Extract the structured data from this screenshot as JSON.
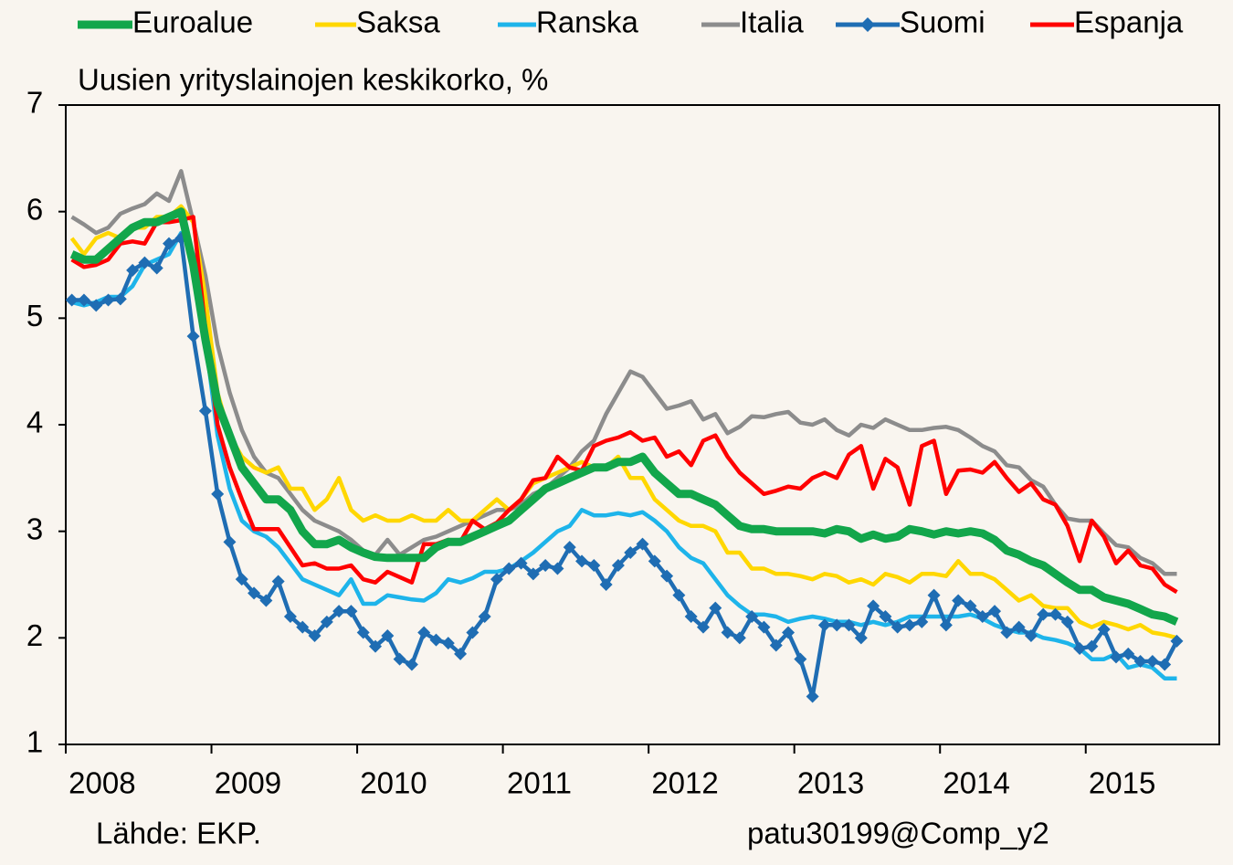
{
  "chart_data": {
    "type": "line",
    "subtitle": "Uusien yrityslainojen keskikorko, %",
    "source": "Lähde: EKP.",
    "credit": "patu30199@Comp_y2",
    "legend": "top",
    "categories": [
      "2008",
      null,
      null,
      null,
      null,
      null,
      null,
      null,
      null,
      null,
      null,
      null,
      "2009",
      null,
      null,
      null,
      null,
      null,
      null,
      null,
      null,
      null,
      null,
      null,
      "2010",
      null,
      null,
      null,
      null,
      null,
      null,
      null,
      null,
      null,
      null,
      null,
      "2011",
      null,
      null,
      null,
      null,
      null,
      null,
      null,
      null,
      null,
      null,
      null,
      "2012",
      null,
      null,
      null,
      null,
      null,
      null,
      null,
      null,
      null,
      null,
      null,
      "2013",
      null,
      null,
      null,
      null,
      null,
      null,
      null,
      null,
      null,
      null,
      null,
      "2014",
      null,
      null,
      null,
      null,
      null,
      null,
      null,
      null,
      null,
      null,
      null,
      "2015",
      null,
      null,
      null,
      null,
      null,
      null,
      null,
      null,
      null,
      null
    ],
    "ylim": [
      1,
      7
    ],
    "yticks": [
      1,
      2,
      3,
      4,
      5,
      6,
      7
    ],
    "grid": false,
    "series": [
      {
        "name": "Euroalue",
        "color": "#12a64b",
        "values": [
          5.6,
          5.55,
          5.55,
          5.65,
          5.75,
          5.85,
          5.9,
          5.9,
          5.95,
          6.0,
          5.5,
          4.8,
          4.2,
          3.9,
          3.6,
          3.45,
          3.3,
          3.3,
          3.2,
          3.0,
          2.88,
          2.88,
          2.92,
          2.85,
          2.8,
          2.76,
          2.75,
          2.75,
          2.75,
          2.75,
          2.85,
          2.9,
          2.9,
          2.95,
          3.0,
          3.05,
          3.1,
          3.2,
          3.3,
          3.4,
          3.45,
          3.5,
          3.55,
          3.6,
          3.6,
          3.65,
          3.65,
          3.7,
          3.55,
          3.45,
          3.35,
          3.35,
          3.3,
          3.25,
          3.15,
          3.05,
          3.02,
          3.02,
          3.0,
          3.0,
          3.0,
          3.0,
          2.98,
          3.02,
          3.0,
          2.93,
          2.97,
          2.93,
          2.95,
          3.02,
          3.0,
          2.97,
          3.0,
          2.98,
          3.0,
          2.98,
          2.92,
          2.82,
          2.78,
          2.72,
          2.68,
          2.6,
          2.52,
          2.45,
          2.45,
          2.38,
          2.35,
          2.32,
          2.27,
          2.22,
          2.2,
          2.15,
          null,
          null,
          null
        ]
      },
      {
        "name": "Saksa",
        "color": "#ffd700",
        "values": [
          5.75,
          5.6,
          5.75,
          5.8,
          5.75,
          5.85,
          5.85,
          5.95,
          5.95,
          6.05,
          5.9,
          5.2,
          4.3,
          3.9,
          3.7,
          3.6,
          3.55,
          3.6,
          3.4,
          3.4,
          3.2,
          3.3,
          3.5,
          3.2,
          3.1,
          3.15,
          3.1,
          3.1,
          3.15,
          3.1,
          3.1,
          3.2,
          3.1,
          3.1,
          3.2,
          3.3,
          3.2,
          3.3,
          3.45,
          3.5,
          3.55,
          3.6,
          3.65,
          3.6,
          3.6,
          3.7,
          3.5,
          3.5,
          3.3,
          3.2,
          3.1,
          3.05,
          3.05,
          3.0,
          2.8,
          2.8,
          2.65,
          2.65,
          2.6,
          2.6,
          2.58,
          2.55,
          2.6,
          2.58,
          2.52,
          2.55,
          2.5,
          2.6,
          2.57,
          2.52,
          2.6,
          2.6,
          2.58,
          2.72,
          2.6,
          2.6,
          2.55,
          2.45,
          2.35,
          2.4,
          2.3,
          2.28,
          2.28,
          2.15,
          2.1,
          2.15,
          2.12,
          2.08,
          2.12,
          2.05,
          2.03,
          2.0,
          null,
          null,
          null
        ]
      },
      {
        "name": "Ranska",
        "color": "#1eb4ea",
        "values": [
          5.15,
          5.12,
          5.15,
          5.2,
          5.2,
          5.3,
          5.5,
          5.55,
          5.6,
          5.8,
          5.6,
          4.8,
          3.9,
          3.4,
          3.1,
          3.0,
          2.95,
          2.85,
          2.7,
          2.55,
          2.5,
          2.45,
          2.4,
          2.55,
          2.32,
          2.32,
          2.4,
          2.38,
          2.36,
          2.35,
          2.42,
          2.55,
          2.52,
          2.56,
          2.62,
          2.62,
          2.65,
          2.72,
          2.8,
          2.9,
          3.0,
          3.05,
          3.2,
          3.15,
          3.15,
          3.17,
          3.15,
          3.18,
          3.1,
          3.0,
          2.85,
          2.75,
          2.7,
          2.55,
          2.4,
          2.3,
          2.22,
          2.22,
          2.2,
          2.15,
          2.18,
          2.2,
          2.18,
          2.15,
          2.15,
          2.12,
          2.15,
          2.12,
          2.15,
          2.2,
          2.2,
          2.2,
          2.2,
          2.2,
          2.22,
          2.18,
          2.12,
          2.08,
          2.05,
          2.05,
          2.0,
          1.98,
          1.95,
          1.9,
          1.8,
          1.8,
          1.85,
          1.72,
          1.75,
          1.72,
          1.62,
          1.62,
          null,
          null,
          null
        ]
      },
      {
        "name": "Italia",
        "color": "#8c8c8c",
        "values": [
          5.95,
          5.88,
          5.8,
          5.85,
          5.98,
          6.03,
          6.07,
          6.17,
          6.1,
          6.38,
          5.9,
          5.4,
          4.75,
          4.3,
          3.95,
          3.7,
          3.55,
          3.5,
          3.35,
          3.2,
          3.1,
          3.05,
          3.0,
          2.92,
          2.82,
          2.78,
          2.92,
          2.78,
          2.85,
          2.92,
          2.95,
          3.0,
          3.05,
          3.1,
          3.15,
          3.2,
          3.2,
          3.25,
          3.35,
          3.4,
          3.5,
          3.6,
          3.75,
          3.85,
          4.1,
          4.3,
          4.5,
          4.45,
          4.3,
          4.15,
          4.18,
          4.22,
          4.05,
          4.1,
          3.92,
          3.98,
          4.08,
          4.07,
          4.1,
          4.12,
          4.02,
          4.0,
          4.05,
          3.95,
          3.9,
          4.0,
          3.97,
          4.05,
          4.0,
          3.95,
          3.95,
          3.97,
          3.98,
          3.95,
          3.88,
          3.8,
          3.75,
          3.62,
          3.6,
          3.48,
          3.42,
          3.25,
          3.12,
          3.1,
          3.1,
          2.98,
          2.87,
          2.85,
          2.75,
          2.7,
          2.6,
          2.6,
          null,
          null,
          null
        ]
      },
      {
        "name": "Suomi",
        "color": "#1f6db3",
        "marker": "diamond",
        "values": [
          5.17,
          5.17,
          5.12,
          5.17,
          5.18,
          5.45,
          5.52,
          5.47,
          5.7,
          5.75,
          4.83,
          4.13,
          3.35,
          2.9,
          2.55,
          2.42,
          2.35,
          2.53,
          2.2,
          2.1,
          2.02,
          2.15,
          2.25,
          2.25,
          2.05,
          1.92,
          2.02,
          1.8,
          1.75,
          2.05,
          1.98,
          1.95,
          1.85,
          2.05,
          2.2,
          2.55,
          2.65,
          2.7,
          2.6,
          2.68,
          2.65,
          2.85,
          2.72,
          2.68,
          2.5,
          2.68,
          2.8,
          2.88,
          2.72,
          2.58,
          2.4,
          2.2,
          2.1,
          2.28,
          2.05,
          2.0,
          2.2,
          2.1,
          1.93,
          2.05,
          1.8,
          1.45,
          2.12,
          2.12,
          2.12,
          2.0,
          2.3,
          2.2,
          2.1,
          2.12,
          2.15,
          2.4,
          2.12,
          2.35,
          2.3,
          2.2,
          2.25,
          2.05,
          2.1,
          2.02,
          2.22,
          2.22,
          2.15,
          1.9,
          1.92,
          2.08,
          1.82,
          1.85,
          1.78,
          1.78,
          1.75,
          1.97,
          null,
          null,
          null
        ]
      },
      {
        "name": "Espanja",
        "color": "#ff0000",
        "values": [
          5.55,
          5.48,
          5.5,
          5.55,
          5.7,
          5.72,
          5.7,
          5.9,
          5.9,
          5.92,
          5.95,
          4.9,
          4.0,
          3.6,
          3.3,
          3.02,
          3.02,
          3.02,
          2.85,
          2.68,
          2.7,
          2.65,
          2.65,
          2.68,
          2.55,
          2.52,
          2.62,
          2.57,
          2.52,
          2.88,
          2.88,
          2.92,
          2.9,
          3.1,
          3.02,
          3.08,
          3.2,
          3.3,
          3.48,
          3.5,
          3.7,
          3.6,
          3.57,
          3.8,
          3.85,
          3.88,
          3.93,
          3.85,
          3.88,
          3.7,
          3.75,
          3.62,
          3.85,
          3.9,
          3.7,
          3.55,
          3.45,
          3.35,
          3.38,
          3.42,
          3.4,
          3.5,
          3.55,
          3.5,
          3.72,
          3.8,
          3.4,
          3.68,
          3.6,
          3.25,
          3.8,
          3.85,
          3.35,
          3.57,
          3.58,
          3.55,
          3.65,
          3.5,
          3.37,
          3.45,
          3.3,
          3.25,
          3.05,
          2.72,
          3.1,
          2.95,
          2.7,
          2.82,
          2.68,
          2.65,
          2.5,
          2.43,
          null,
          null,
          null
        ]
      }
    ]
  }
}
